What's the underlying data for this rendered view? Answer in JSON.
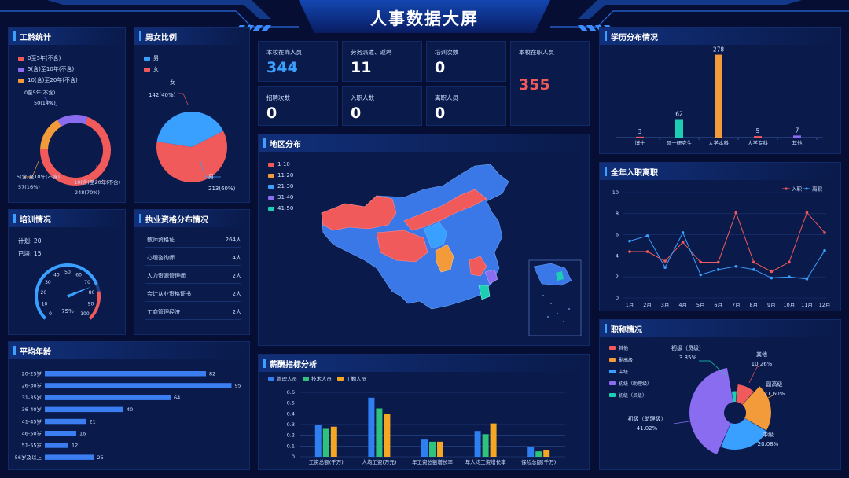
{
  "title": "人事数据大屏",
  "colors": {
    "red": "#f05a5a",
    "blue": "#3aa0ff",
    "purple": "#8a6cf0",
    "orange": "#f39a3a",
    "teal": "#1ccfb3",
    "navy": "#0a1a4a"
  },
  "panels": {
    "service": {
      "title": "工龄统计",
      "legend": [
        "0至5年(不含)",
        "5(含)至10年(不含)",
        "10(含)至20年(不含)"
      ],
      "labels": [
        {
          "name": "0至5年(不含)",
          "value": "50(14%)"
        },
        {
          "name": "5(含)至10年(不含)",
          "value": "57(16%)"
        },
        {
          "name": "10(含)至20年(不含)",
          "value": "248(70%)"
        }
      ]
    },
    "gender": {
      "title": "男女比例",
      "legend": [
        "男",
        "女"
      ],
      "female_label": "女",
      "female_value": "142(40%)",
      "male_label": "男",
      "male_value": "213(60%)"
    },
    "training": {
      "title": "培训情况",
      "plan_label": "计划:",
      "plan_value": "20",
      "done_label": "已培:",
      "done_value": "15",
      "percent": "75%",
      "ticks": [
        "0",
        "10",
        "20",
        "30",
        "40",
        "50",
        "60",
        "70",
        "80",
        "90",
        "100"
      ]
    },
    "cert": {
      "title": "执业资格分布情况",
      "rows": [
        {
          "name": "教师资格证",
          "value": "264人"
        },
        {
          "name": "心理咨询师",
          "value": "4人"
        },
        {
          "name": "人力资源管理师",
          "value": "2人"
        },
        {
          "name": "会计从业资格证书",
          "value": "2人"
        },
        {
          "name": "工商管理经济",
          "value": "2人"
        }
      ]
    },
    "age": {
      "title": "平均年龄"
    },
    "map": {
      "title": "地区分布",
      "legend": [
        "1-10",
        "11-20",
        "21-30",
        "31-40",
        "41-50"
      ]
    },
    "salary": {
      "title": "薪酬指标分析"
    },
    "edu": {
      "title": "学历分布情况"
    },
    "yearly": {
      "title": "全年入职离职"
    },
    "rank": {
      "title": "职称情况"
    }
  },
  "kpis": [
    {
      "label": "本校在岗人员",
      "value": "344"
    },
    {
      "label": "劳务派遣、返聘",
      "value": "11"
    },
    {
      "label": "培训次数",
      "value": "0"
    },
    {
      "label": "本校在职人员",
      "value": "355"
    },
    {
      "label": "招聘次数",
      "value": "0"
    },
    {
      "label": "入职人数",
      "value": "0"
    },
    {
      "label": "离职人员",
      "value": "0"
    }
  ],
  "chart_data": [
    {
      "type": "pie",
      "title": "工龄统计",
      "categories": [
        "0至5年(不含)",
        "5(含)至10年(不含)",
        "10(含)至20年(不含)"
      ],
      "values": [
        50,
        57,
        248
      ],
      "percent": [
        14,
        16,
        70
      ],
      "donut": true
    },
    {
      "type": "pie",
      "title": "男女比例",
      "categories": [
        "男",
        "女"
      ],
      "values": [
        213,
        142
      ],
      "percent": [
        60,
        40
      ]
    },
    {
      "type": "gauge",
      "title": "培训情况",
      "value": 75,
      "range": [
        0,
        100
      ]
    },
    {
      "type": "bar",
      "orientation": "horizontal",
      "title": "平均年龄",
      "categories": [
        "20-25岁",
        "26-30岁",
        "31-35岁",
        "36-40岁",
        "41-45岁",
        "46-50岁",
        "51-55岁",
        "56岁及以上"
      ],
      "values": [
        82,
        95,
        64,
        40,
        21,
        16,
        12,
        25
      ],
      "xlim": [
        0,
        100
      ]
    },
    {
      "type": "bar",
      "title": "学历分布情况",
      "categories": [
        "博士",
        "硕士研究生",
        "大学本科",
        "大学专科",
        "其他"
      ],
      "values": [
        3,
        62,
        278,
        5,
        7
      ],
      "ylim": [
        0,
        290
      ]
    },
    {
      "type": "line",
      "title": "全年入职离职",
      "categories": [
        "1月",
        "2月",
        "3月",
        "4月",
        "5月",
        "6月",
        "7月",
        "8月",
        "9月",
        "10月",
        "11月",
        "12月"
      ],
      "series": [
        {
          "name": "入职",
          "values": [
            4.4,
            4.4,
            3.5,
            5.3,
            3.4,
            3.4,
            8.1,
            3.4,
            2.5,
            3.4,
            8.1,
            6.2
          ]
        },
        {
          "name": "离职",
          "values": [
            5.4,
            5.9,
            2.9,
            6.2,
            2.2,
            2.7,
            3.0,
            2.7,
            1.9,
            2.0,
            1.8,
            4.5
          ]
        }
      ],
      "yticks": [
        "0",
        "2",
        "4",
        "6",
        "8",
        "10"
      ],
      "ylim": [
        0,
        10
      ],
      "legend": "top-right"
    },
    {
      "type": "bar",
      "title": "薪酬指标分析",
      "categories": [
        "工资总额(千万)",
        "人均工资(万元)",
        "年工资总额增长率",
        "年人均工资增长率",
        "保险总额(千万)"
      ],
      "series": [
        {
          "name": "管理人员",
          "values": [
            0.3,
            0.55,
            0.16,
            0.24,
            0.09
          ]
        },
        {
          "name": "技术人员",
          "values": [
            0.26,
            0.45,
            0.14,
            0.21,
            0.05
          ]
        },
        {
          "name": "工勤人员",
          "values": [
            0.28,
            0.4,
            0.14,
            0.31,
            0.06
          ]
        }
      ],
      "yticks": [
        "0",
        "0.1",
        "0.2",
        "0.3",
        "0.4",
        "0.5",
        "0.6"
      ],
      "ylim": [
        0,
        0.6
      ],
      "legend": "top-left"
    },
    {
      "type": "pie",
      "title": "职称情况",
      "categories": [
        "其他",
        "副高级",
        "中级",
        "初级（助理级）",
        "初级（员级）"
      ],
      "percent": [
        10.26,
        21.6,
        23.08,
        41.02,
        3.85
      ],
      "label_names": [
        "其他",
        "副高级",
        "中级",
        "初级（助理级）",
        "初级（员级）"
      ],
      "label_values": [
        "10.26%",
        "21.60%",
        "23.08%",
        "41.02%",
        "3.85%"
      ],
      "rose": true
    }
  ]
}
